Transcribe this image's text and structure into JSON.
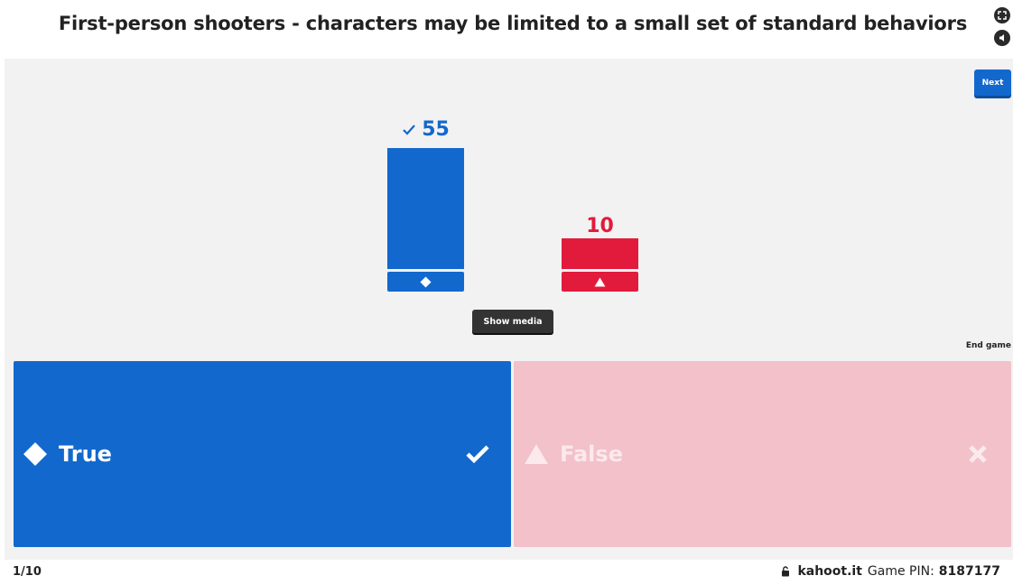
{
  "question": {
    "title": "First-person shooters - characters may be limited to a small set of standard behaviors"
  },
  "header_controls": [
    {
      "icon": "fullscreen-icon"
    },
    {
      "icon": "volume-icon"
    }
  ],
  "controls": {
    "next_label": "Next",
    "show_media_label": "Show media",
    "end_game_label": "End game"
  },
  "results": [
    {
      "count": "55",
      "count_value": 55,
      "correct": true,
      "color": "#1368ce",
      "shape": "diamond-icon"
    },
    {
      "count": "10",
      "count_value": 10,
      "correct": false,
      "color": "#e21b3c",
      "shape": "triangle-icon"
    }
  ],
  "answers": [
    {
      "label": "True",
      "shape": "diamond-icon",
      "status_icon": "check-icon",
      "correct": true,
      "bg": "#1368ce"
    },
    {
      "label": "False",
      "shape": "triangle-icon",
      "status_icon": "cross-icon",
      "correct": false,
      "bg": "#f2c1ca"
    }
  ],
  "footer": {
    "progress": "1/10",
    "site": "kahoot.it",
    "pin_label": "Game PIN:",
    "pin": "8187177"
  },
  "colors": {
    "blue": "#1368ce",
    "red": "#e21b3c",
    "faded_red": "#f2c1ca",
    "stage_bg": "#f2f2f2"
  }
}
